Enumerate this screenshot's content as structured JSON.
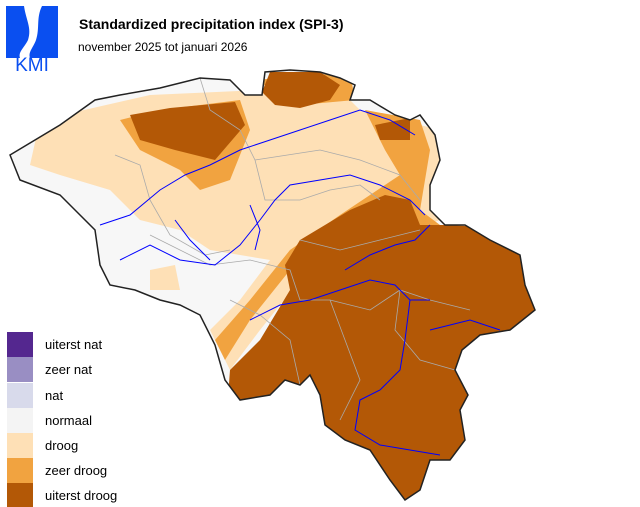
{
  "logo": {
    "text": "KMI",
    "color": "#0a4ff0"
  },
  "header": {
    "title": "Standardized precipitation index (SPI-3)",
    "subtitle": "november 2025 tot januari 2026"
  },
  "legend": [
    {
      "label": "uiterst nat",
      "color": "#54278f"
    },
    {
      "label": "zeer nat",
      "color": "#998ec3"
    },
    {
      "label": "nat",
      "color": "#d8daeb"
    },
    {
      "label": "normaal",
      "color": "#f7f7f7"
    },
    {
      "label": "droog",
      "color": "#fee0b6"
    },
    {
      "label": "zeer droog",
      "color": "#f1a340"
    },
    {
      "label": "uiterst droog",
      "color": "#b35806"
    }
  ],
  "map": {
    "river_color": "#0000ff",
    "border_color": "#222222",
    "province_color": "#aaaaaa"
  }
}
